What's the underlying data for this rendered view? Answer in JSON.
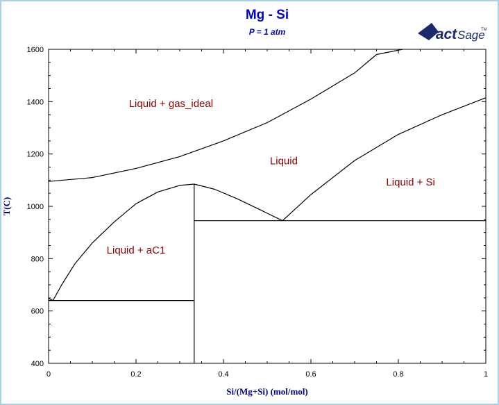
{
  "chart_data": {
    "type": "line",
    "title": "Mg - Si",
    "subtitle": "P = 1 atm",
    "xlabel": "Si/(Mg+Si) (mol/mol)",
    "ylabel": "T(C)",
    "xlim": [
      0,
      1
    ],
    "ylim": [
      400,
      1600
    ],
    "xticks": [
      "0",
      "0.2",
      "0.4",
      "0.6",
      "0.8",
      "1"
    ],
    "yticks": [
      "400",
      "600",
      "800",
      "1000",
      "1200",
      "1400",
      "1600"
    ],
    "grid": false,
    "regions": [
      {
        "label": "Liquid + gas_ideal",
        "x": 0.28,
        "y": 1380
      },
      {
        "label": "Liquid",
        "x": 0.538,
        "y": 1160
      },
      {
        "label": "Liquid + Si",
        "x": 0.828,
        "y": 1080
      },
      {
        "label": "Liquid + aC1",
        "x": 0.2,
        "y": 820
      }
    ],
    "series": [
      {
        "points": [
          [
            0,
            1095
          ],
          [
            0.1,
            1110
          ],
          [
            0.2,
            1145
          ],
          [
            0.3,
            1190
          ],
          [
            0.4,
            1250
          ],
          [
            0.5,
            1320
          ],
          [
            0.6,
            1410
          ],
          [
            0.7,
            1510
          ],
          [
            0.75,
            1580
          ],
          [
            0.81,
            1600
          ]
        ]
      },
      {
        "points": [
          [
            0.535,
            945
          ],
          [
            0.6,
            1045
          ],
          [
            0.7,
            1175
          ],
          [
            0.8,
            1275
          ],
          [
            0.9,
            1350
          ],
          [
            1.0,
            1415
          ]
        ]
      },
      {
        "points": [
          [
            0.333,
            1085
          ],
          [
            0.38,
            1065
          ],
          [
            0.43,
            1030
          ],
          [
            0.48,
            990
          ],
          [
            0.535,
            945
          ]
        ]
      },
      {
        "points": [
          [
            0.01,
            640
          ],
          [
            0.03,
            700
          ],
          [
            0.06,
            780
          ],
          [
            0.1,
            860
          ],
          [
            0.15,
            940
          ],
          [
            0.2,
            1010
          ],
          [
            0.25,
            1055
          ],
          [
            0.3,
            1080
          ],
          [
            0.333,
            1085
          ]
        ]
      },
      {
        "points": [
          [
            0,
            648
          ],
          [
            0.01,
            640
          ]
        ]
      },
      {
        "points": [
          [
            0.333,
            400
          ],
          [
            0.333,
            1085
          ]
        ]
      },
      {
        "points": [
          [
            0,
            640
          ],
          [
            0.333,
            640
          ]
        ]
      },
      {
        "points": [
          [
            0.333,
            945
          ],
          [
            1,
            945
          ]
        ]
      }
    ]
  },
  "logo": {
    "text_main": "Fact",
    "text_sub": "Sage",
    "text_tm": "TM"
  },
  "colors": {
    "frame": "#a9d2e6",
    "title": "#0000cc",
    "axis_label": "#00008b",
    "region_label": "#8b0000",
    "logo": "#1a2a6c",
    "line": "#000000"
  }
}
